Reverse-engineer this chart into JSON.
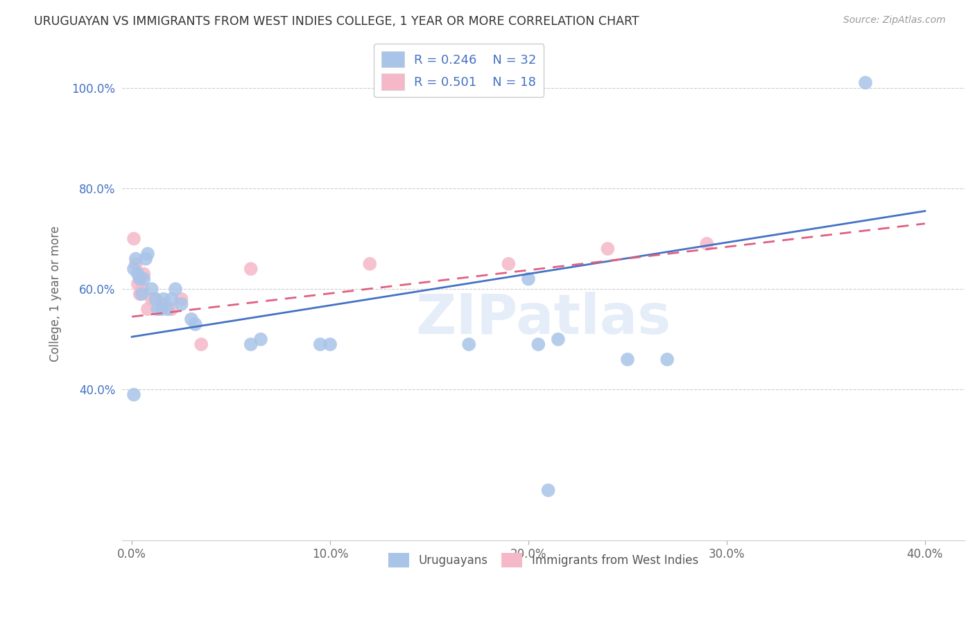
{
  "title": "URUGUAYAN VS IMMIGRANTS FROM WEST INDIES COLLEGE, 1 YEAR OR MORE CORRELATION CHART",
  "source": "Source: ZipAtlas.com",
  "ylabel": "College, 1 year or more",
  "watermark": "ZIPatlas",
  "xlim": [
    -0.005,
    0.42
  ],
  "ylim": [
    0.1,
    1.08
  ],
  "xticks": [
    0.0,
    0.1,
    0.2,
    0.3,
    0.4
  ],
  "xtick_labels": [
    "0.0%",
    "10.0%",
    "20.0%",
    "30.0%",
    "40.0%"
  ],
  "yticks": [
    0.4,
    0.6,
    0.8,
    1.0
  ],
  "ytick_labels": [
    "40.0%",
    "60.0%",
    "80.0%",
    "100.0%"
  ],
  "color_blue": "#a8c4e8",
  "color_pink": "#f5b8c8",
  "line_blue": "#4472c4",
  "line_pink": "#e06080",
  "uruguayan_x": [
    0.001,
    0.002,
    0.003,
    0.004,
    0.005,
    0.006,
    0.007,
    0.008,
    0.01,
    0.012,
    0.013,
    0.015,
    0.016,
    0.018,
    0.02,
    0.022,
    0.025,
    0.03,
    0.032,
    0.06,
    0.065,
    0.095,
    0.1,
    0.17,
    0.2,
    0.205,
    0.21,
    0.215,
    0.25,
    0.27,
    0.37,
    0.001
  ],
  "uruguayan_y": [
    0.64,
    0.66,
    0.63,
    0.62,
    0.59,
    0.62,
    0.66,
    0.67,
    0.6,
    0.58,
    0.56,
    0.56,
    0.58,
    0.56,
    0.58,
    0.6,
    0.57,
    0.54,
    0.53,
    0.49,
    0.5,
    0.49,
    0.49,
    0.49,
    0.62,
    0.49,
    0.2,
    0.5,
    0.46,
    0.46,
    1.01,
    0.39
  ],
  "westindies_x": [
    0.001,
    0.002,
    0.003,
    0.004,
    0.005,
    0.006,
    0.008,
    0.01,
    0.012,
    0.015,
    0.02,
    0.025,
    0.035,
    0.06,
    0.12,
    0.19,
    0.24,
    0.29
  ],
  "westindies_y": [
    0.7,
    0.65,
    0.61,
    0.59,
    0.6,
    0.63,
    0.56,
    0.58,
    0.58,
    0.57,
    0.56,
    0.58,
    0.49,
    0.64,
    0.65,
    0.65,
    0.68,
    0.69
  ],
  "blue_line_x": [
    0.0,
    0.4
  ],
  "blue_line_y": [
    0.505,
    0.755
  ],
  "pink_line_x": [
    0.0,
    0.4
  ],
  "pink_line_y": [
    0.545,
    0.73
  ]
}
